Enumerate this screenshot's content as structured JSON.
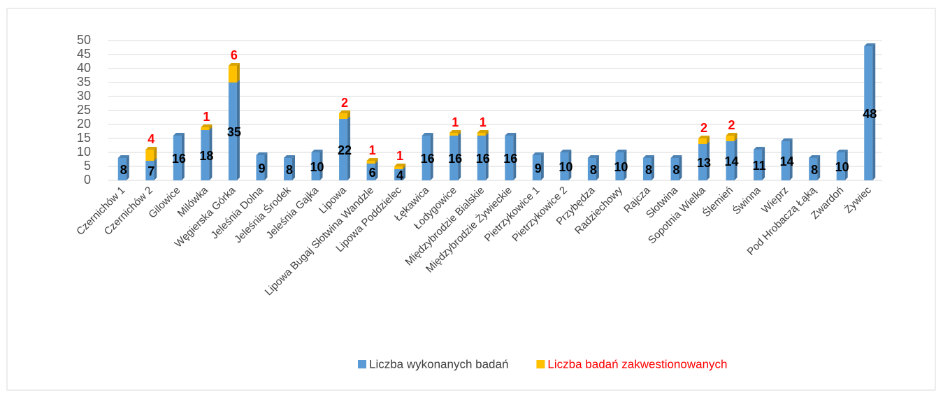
{
  "chart_data": {
    "type": "bar",
    "stacked": true,
    "categories": [
      "Czernichów 1",
      "Czernichów 2",
      "Gilowice",
      "Milówka",
      "Węgierska Górka",
      "Jeleśnia Dolna",
      "Jeleśnia Środek",
      "Jeleśnia Gajka",
      "Lipowa",
      "Lipowa Bugaj Słotwina Wandzle",
      "Lipowa Poddzielec",
      "Łękawica",
      "Łodygowice",
      "Międzybrodzie Bialskie",
      "Międzybrodzie Żywieckie",
      "Pietrzykowice 1",
      "Pietrzykowice 2",
      "Przybędza",
      "Radziechowy",
      "Rajcza",
      "Słotwina",
      "Sopotnia Wielka",
      "Ślemień",
      "Świnna",
      "Wieprz",
      "Pod Hrobaczą Łąką",
      "Zwardoń",
      "Żywiec"
    ],
    "series": [
      {
        "name": "Liczba wykonanych badań",
        "color": "#5b9bd5",
        "label_color": "#000000",
        "values": [
          8,
          7,
          16,
          18,
          35,
          9,
          8,
          10,
          22,
          6,
          4,
          16,
          16,
          16,
          16,
          9,
          10,
          8,
          10,
          8,
          8,
          13,
          14,
          11,
          14,
          8,
          10,
          48
        ]
      },
      {
        "name": "Liczba badań zakwestionowanych",
        "color": "#ffc000",
        "label_color": "#ff0000",
        "values": [
          null,
          4,
          null,
          1,
          6,
          null,
          null,
          null,
          2,
          1,
          1,
          null,
          1,
          1,
          null,
          null,
          null,
          null,
          null,
          null,
          null,
          2,
          2,
          null,
          null,
          null,
          null,
          null
        ]
      }
    ],
    "ylim": [
      0,
      50
    ],
    "yticks": [
      0,
      5,
      10,
      15,
      20,
      25,
      30,
      35,
      40,
      45,
      50
    ],
    "grid": true,
    "legend": "bottom"
  }
}
